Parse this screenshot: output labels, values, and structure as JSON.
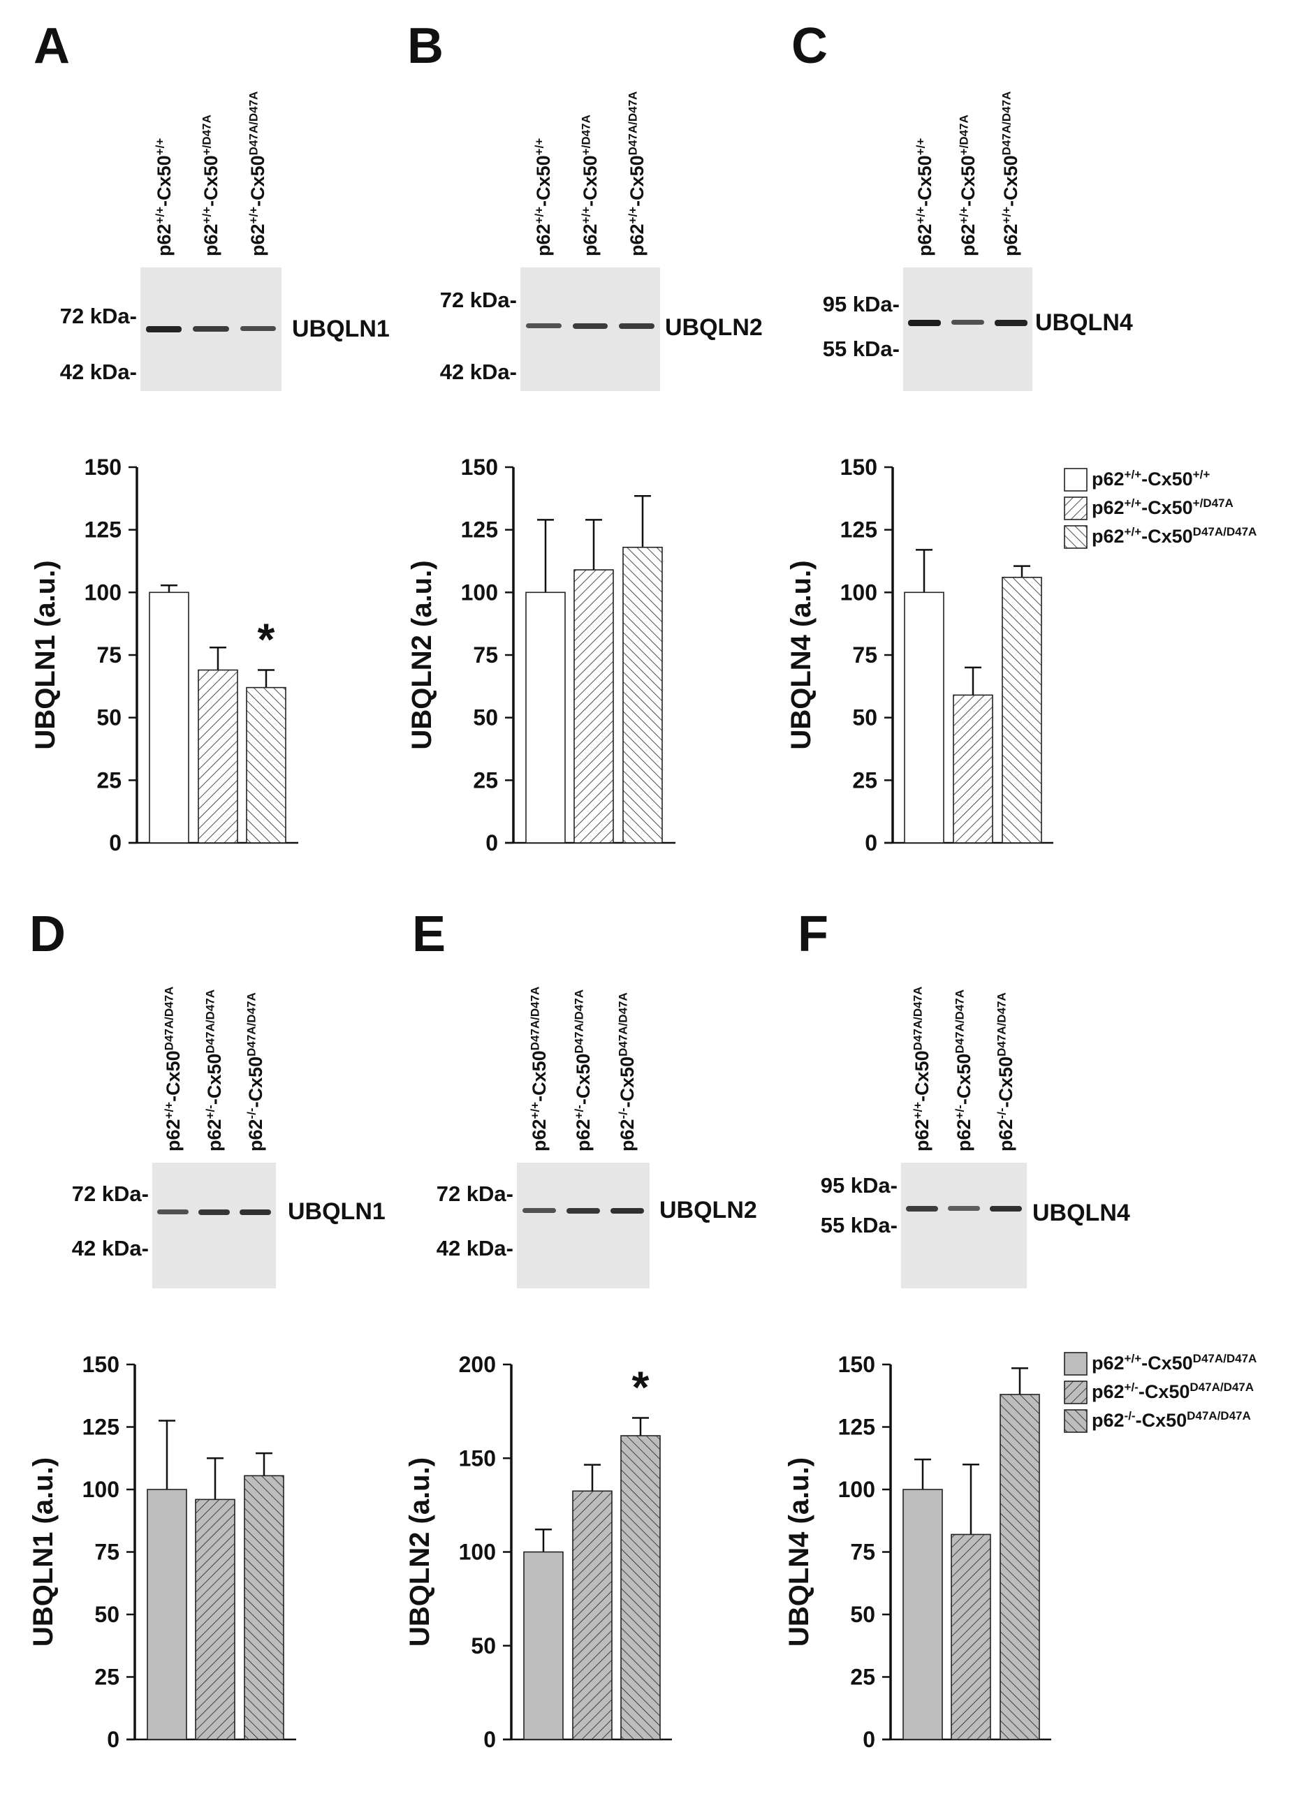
{
  "figure": {
    "panels": [
      {
        "letter": "A",
        "protein": "UBQLN1",
        "mw_markers": [
          "72 kDa-",
          "42 kDa-"
        ],
        "lanes": [
          {
            "base": "p62",
            "sup1": "+/+",
            "mid": "-Cx50",
            "sup2": "+/+"
          },
          {
            "base": "p62",
            "sup1": "+/+",
            "mid": "-Cx50",
            "sup2": "+/D47A"
          },
          {
            "base": "p62",
            "sup1": "+/+",
            "mid": "-Cx50",
            "sup2": "D47A/D47A"
          }
        ],
        "band_intensity": [
          0.95,
          0.75,
          0.65
        ]
      },
      {
        "letter": "B",
        "protein": "UBQLN2",
        "mw_markers": [
          "72 kDa-",
          "42 kDa-"
        ],
        "lanes": [
          {
            "base": "p62",
            "sup1": "+/+",
            "mid": "-Cx50",
            "sup2": "+/+"
          },
          {
            "base": "p62",
            "sup1": "+/+",
            "mid": "-Cx50",
            "sup2": "+/D47A"
          },
          {
            "base": "p62",
            "sup1": "+/+",
            "mid": "-Cx50",
            "sup2": "D47A/D47A"
          }
        ],
        "band_intensity": [
          0.6,
          0.75,
          0.75
        ]
      },
      {
        "letter": "C",
        "protein": "UBQLN4",
        "mw_markers": [
          "95 kDa-",
          "55 kDa-"
        ],
        "lanes": [
          {
            "base": "p62",
            "sup1": "+/+",
            "mid": "-Cx50",
            "sup2": "+/+"
          },
          {
            "base": "p62",
            "sup1": "+/+",
            "mid": "-Cx50",
            "sup2": "+/D47A"
          },
          {
            "base": "p62",
            "sup1": "+/+",
            "mid": "-Cx50",
            "sup2": "D47A/D47A"
          }
        ],
        "band_intensity": [
          1.0,
          0.6,
          0.95
        ]
      },
      {
        "letter": "D",
        "protein": "UBQLN1",
        "mw_markers": [
          "72 kDa-",
          "42 kDa-"
        ],
        "lanes": [
          {
            "base": "p62",
            "sup1": "+/+",
            "mid": "-Cx50",
            "sup2": "D47A/D47A"
          },
          {
            "base": "p62",
            "sup1": "+/-",
            "mid": "-Cx50",
            "sup2": "D47A/D47A"
          },
          {
            "base": "p62",
            "sup1": "-/-",
            "mid": "-Cx50",
            "sup2": "D47A/D47A"
          }
        ],
        "band_intensity": [
          0.6,
          0.8,
          0.85
        ]
      },
      {
        "letter": "E",
        "protein": "UBQLN2",
        "mw_markers": [
          "72 kDa-",
          "42 kDa-"
        ],
        "lanes": [
          {
            "base": "p62",
            "sup1": "+/+",
            "mid": "-Cx50",
            "sup2": "D47A/D47A"
          },
          {
            "base": "p62",
            "sup1": "+/-",
            "mid": "-Cx50",
            "sup2": "D47A/D47A"
          },
          {
            "base": "p62",
            "sup1": "-/-",
            "mid": "-Cx50",
            "sup2": "D47A/D47A"
          }
        ],
        "band_intensity": [
          0.6,
          0.8,
          0.85
        ]
      },
      {
        "letter": "F",
        "protein": "UBQLN4",
        "mw_markers": [
          "95 kDa-",
          "55 kDa-"
        ],
        "lanes": [
          {
            "base": "p62",
            "sup1": "+/+",
            "mid": "-Cx50",
            "sup2": "D47A/D47A"
          },
          {
            "base": "p62",
            "sup1": "+/-",
            "mid": "-Cx50",
            "sup2": "D47A/D47A"
          },
          {
            "base": "p62",
            "sup1": "-/-",
            "mid": "-Cx50",
            "sup2": "D47A/D47A"
          }
        ],
        "band_intensity": [
          0.75,
          0.5,
          0.85
        ]
      }
    ],
    "legends": [
      {
        "entries": [
          {
            "base": "p62",
            "sup1": "+/+",
            "mid": "-Cx50",
            "sup2": "+/+",
            "pattern": "open"
          },
          {
            "base": "p62",
            "sup1": "+/+",
            "mid": "-Cx50",
            "sup2": "+/D47A",
            "pattern": "forward-hatch"
          },
          {
            "base": "p62",
            "sup1": "+/+",
            "mid": "-Cx50",
            "sup2": "D47A/D47A",
            "pattern": "back-hatch"
          }
        ]
      },
      {
        "entries": [
          {
            "base": "p62",
            "sup1": "+/+",
            "mid": "-Cx50",
            "sup2": "D47A/D47A",
            "pattern": "gray"
          },
          {
            "base": "p62",
            "sup1": "+/-",
            "mid": "-Cx50",
            "sup2": "D47A/D47A",
            "pattern": "gray-forward-hatch"
          },
          {
            "base": "p62",
            "sup1": "-/-",
            "mid": "-Cx50",
            "sup2": "D47A/D47A",
            "pattern": "gray-back-hatch"
          }
        ]
      }
    ],
    "colors": {
      "bar_outline": "#222222",
      "gray_fill": "#bdbdbd",
      "open_fill": "#ffffff",
      "blot_background": "#e6e6e6",
      "band": "#1c1c1c"
    }
  },
  "chart_data": [
    {
      "panel": "A",
      "type": "bar",
      "title": "",
      "xlabel": "",
      "ylabel": "UBQLN1 (a.u.)",
      "ylim": [
        0,
        150
      ],
      "yticks": [
        0,
        25,
        50,
        75,
        100,
        125,
        150
      ],
      "categories": [
        "p62+/+-Cx50+/+",
        "p62+/+-Cx50+/D47A",
        "p62+/+-Cx50D47A/D47A"
      ],
      "values": [
        100,
        69,
        62
      ],
      "error_upper": [
        102.8,
        78,
        69
      ],
      "patterns": [
        "open",
        "forward-hatch",
        "back-hatch"
      ],
      "significance": [
        "",
        "",
        "*"
      ],
      "grid": false
    },
    {
      "panel": "B",
      "type": "bar",
      "title": "",
      "xlabel": "",
      "ylabel": "UBQLN2 (a.u.)",
      "ylim": [
        0,
        150
      ],
      "yticks": [
        0,
        25,
        50,
        75,
        100,
        125,
        150
      ],
      "categories": [
        "p62+/+-Cx50+/+",
        "p62+/+-Cx50+/D47A",
        "p62+/+-Cx50D47A/D47A"
      ],
      "values": [
        100,
        109,
        118
      ],
      "error_upper": [
        129,
        129,
        138.5
      ],
      "patterns": [
        "open",
        "forward-hatch",
        "back-hatch"
      ],
      "significance": [
        "",
        "",
        ""
      ],
      "grid": false
    },
    {
      "panel": "C",
      "type": "bar",
      "title": "",
      "xlabel": "",
      "ylabel": "UBQLN4 (a.u.)",
      "ylim": [
        0,
        150
      ],
      "yticks": [
        0,
        25,
        50,
        75,
        100,
        125,
        150
      ],
      "categories": [
        "p62+/+-Cx50+/+",
        "p62+/+-Cx50+/D47A",
        "p62+/+-Cx50D47A/D47A"
      ],
      "values": [
        100,
        59,
        106
      ],
      "error_upper": [
        117,
        70,
        110.5
      ],
      "patterns": [
        "open",
        "forward-hatch",
        "back-hatch"
      ],
      "significance": [
        "",
        "",
        ""
      ],
      "legend": "right",
      "grid": false
    },
    {
      "panel": "D",
      "type": "bar",
      "title": "",
      "xlabel": "",
      "ylabel": "UBQLN1 (a.u.)",
      "ylim": [
        0,
        150
      ],
      "yticks": [
        0,
        25,
        50,
        75,
        100,
        125,
        150
      ],
      "categories": [
        "p62+/+-Cx50D47A/D47A",
        "p62+/--Cx50D47A/D47A",
        "p62-/--Cx50D47A/D47A"
      ],
      "values": [
        100,
        96,
        105.5
      ],
      "error_upper": [
        127.5,
        112.5,
        114.5
      ],
      "patterns": [
        "gray",
        "gray-forward-hatch",
        "gray-back-hatch"
      ],
      "significance": [
        "",
        "",
        ""
      ],
      "grid": false
    },
    {
      "panel": "E",
      "type": "bar",
      "title": "",
      "xlabel": "",
      "ylabel": "UBQLN2 (a.u.)",
      "ylim": [
        0,
        200
      ],
      "yticks": [
        0,
        50,
        100,
        150,
        200
      ],
      "categories": [
        "p62+/+-Cx50D47A/D47A",
        "p62+/--Cx50D47A/D47A",
        "p62-/--Cx50D47A/D47A"
      ],
      "values": [
        100,
        132.5,
        162
      ],
      "error_upper": [
        112,
        146.5,
        171.5
      ],
      "patterns": [
        "gray",
        "gray-forward-hatch",
        "gray-back-hatch"
      ],
      "significance": [
        "",
        "",
        "*"
      ],
      "grid": false
    },
    {
      "panel": "F",
      "type": "bar",
      "title": "",
      "xlabel": "",
      "ylabel": "UBQLN4 (a.u.)",
      "ylim": [
        0,
        150
      ],
      "yticks": [
        0,
        25,
        50,
        75,
        100,
        125,
        150
      ],
      "categories": [
        "p62+/+-Cx50D47A/D47A",
        "p62+/--Cx50D47A/D47A",
        "p62-/--Cx50D47A/D47A"
      ],
      "values": [
        100,
        82,
        138
      ],
      "error_upper": [
        112,
        110,
        148.5
      ],
      "patterns": [
        "gray",
        "gray-forward-hatch",
        "gray-back-hatch"
      ],
      "significance": [
        "",
        "",
        ""
      ],
      "legend": "right",
      "grid": false
    }
  ]
}
